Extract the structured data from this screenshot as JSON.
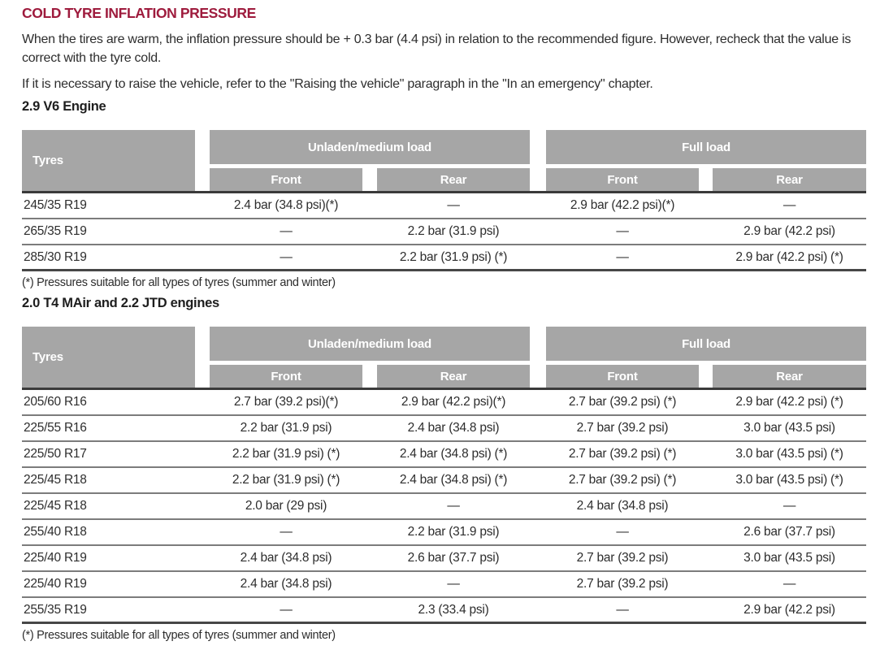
{
  "page": {
    "title": "COLD TYRE INFLATION PRESSURE",
    "intro_1": "When the tires are warm, the inflation pressure should be + 0.3 bar (4.4 psi) in relation to the recommended figure. However, recheck that the value is correct with the tyre cold.",
    "intro_2": "If it is necessary to raise the vehicle, refer to the \"Raising the vehicle\" paragraph in the \"In an emergency\" chapter.",
    "colors": {
      "accent": "#9e1b3d",
      "table_header_bg": "#a6a6a6",
      "table_header_text": "#ffffff",
      "body_text": "#2d2d2d"
    }
  },
  "tables": [
    {
      "heading": "2.9 V6 Engine",
      "col_tyres": "Tyres",
      "group_unladen": "Unladen/medium load",
      "group_full": "Full load",
      "sub_front": "Front",
      "sub_rear": "Rear",
      "rows": [
        {
          "tyre": "245/35 R19",
          "values": [
            "2.4 bar (34.8 psi)(*)",
            "—",
            "2.9 bar (42.2 psi)(*)",
            "—"
          ]
        },
        {
          "tyre": "265/35 R19",
          "values": [
            "—",
            "2.2 bar (31.9 psi)",
            "—",
            "2.9 bar (42.2 psi)"
          ]
        },
        {
          "tyre": "285/30 R19",
          "values": [
            "—",
            "2.2 bar (31.9 psi) (*)",
            "—",
            "2.9 bar (42.2 psi) (*)"
          ]
        }
      ],
      "footnote": "(*) Pressures suitable for all types of tyres (summer and winter)"
    },
    {
      "heading": "2.0 T4 MAir and 2.2 JTD engines",
      "col_tyres": "Tyres",
      "group_unladen": "Unladen/medium load",
      "group_full": "Full load",
      "sub_front": "Front",
      "sub_rear": "Rear",
      "rows": [
        {
          "tyre": "205/60 R16",
          "values": [
            "2.7 bar (39.2 psi)(*)",
            "2.9 bar (42.2 psi)(*)",
            "2.7 bar (39.2 psi) (*)",
            "2.9 bar (42.2 psi) (*)"
          ]
        },
        {
          "tyre": "225/55 R16",
          "values": [
            "2.2 bar (31.9 psi)",
            "2.4 bar (34.8 psi)",
            "2.7 bar (39.2 psi)",
            "3.0 bar (43.5 psi)"
          ]
        },
        {
          "tyre": "225/50 R17",
          "values": [
            "2.2 bar (31.9 psi) (*)",
            "2.4 bar (34.8 psi) (*)",
            "2.7 bar (39.2 psi) (*)",
            "3.0 bar (43.5 psi) (*)"
          ]
        },
        {
          "tyre": "225/45 R18",
          "values": [
            "2.2 bar (31.9 psi) (*)",
            "2.4 bar (34.8 psi) (*)",
            "2.7 bar (39.2 psi) (*)",
            "3.0 bar (43.5 psi) (*)"
          ]
        },
        {
          "tyre": "225/45 R18",
          "values": [
            "2.0 bar (29 psi)",
            "—",
            "2.4 bar (34.8 psi)",
            "—"
          ]
        },
        {
          "tyre": "255/40 R18",
          "values": [
            "—",
            "2.2 bar (31.9 psi)",
            "—",
            "2.6 bar (37.7 psi)"
          ]
        },
        {
          "tyre": "225/40 R19",
          "values": [
            "2.4 bar (34.8 psi)",
            "2.6 bar (37.7 psi)",
            "2.7 bar (39.2 psi)",
            "3.0 bar (43.5 psi)"
          ]
        },
        {
          "tyre": "225/40 R19",
          "values": [
            "2.4 bar (34.8 psi)",
            "—",
            "2.7 bar (39.2 psi)",
            "—"
          ]
        },
        {
          "tyre": "255/35 R19",
          "values": [
            "—",
            "2.3 (33.4 psi)",
            "—",
            "2.9 bar (42.2 psi)"
          ]
        }
      ],
      "footnote": "(*) Pressures suitable for all types of tyres (summer and winter)"
    }
  ]
}
